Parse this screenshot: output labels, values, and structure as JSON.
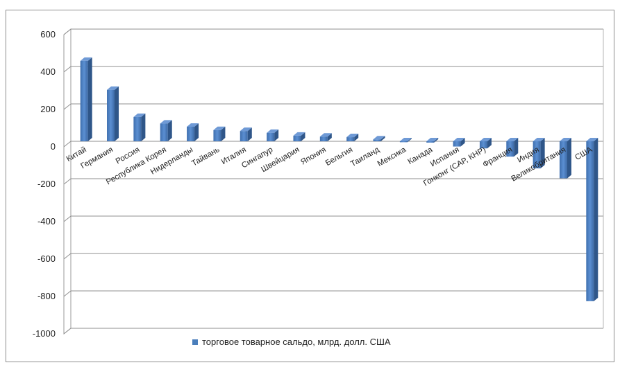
{
  "chart_data": {
    "type": "bar",
    "title": "",
    "xlabel": "",
    "ylabel": "",
    "ylim": [
      -1000,
      600
    ],
    "yticks": [
      600,
      400,
      200,
      0,
      -200,
      -400,
      -600,
      -800,
      -1000
    ],
    "grid": true,
    "legend_position": "bottom",
    "categories": [
      "Китай",
      "Германия",
      "Россия",
      "Республика Корея",
      "Нидерланды",
      "Тайвань",
      "Италия",
      "Сингапур",
      "Швейцария",
      "Япония",
      "Бельгия",
      "Таиланд",
      "Мексика",
      "Канада",
      "Испания",
      "Гонконг (САР, КНР)",
      "Франция",
      "Индия",
      "Великобритания",
      "США"
    ],
    "series": [
      {
        "name": "торговое товарное сальдо, млрд. долл. США",
        "color": "#4a7ebb",
        "values": [
          430,
          275,
          130,
          95,
          78,
          60,
          55,
          45,
          30,
          25,
          22,
          10,
          -5,
          -7,
          -28,
          -38,
          -82,
          -145,
          -198,
          -855
        ]
      }
    ]
  }
}
